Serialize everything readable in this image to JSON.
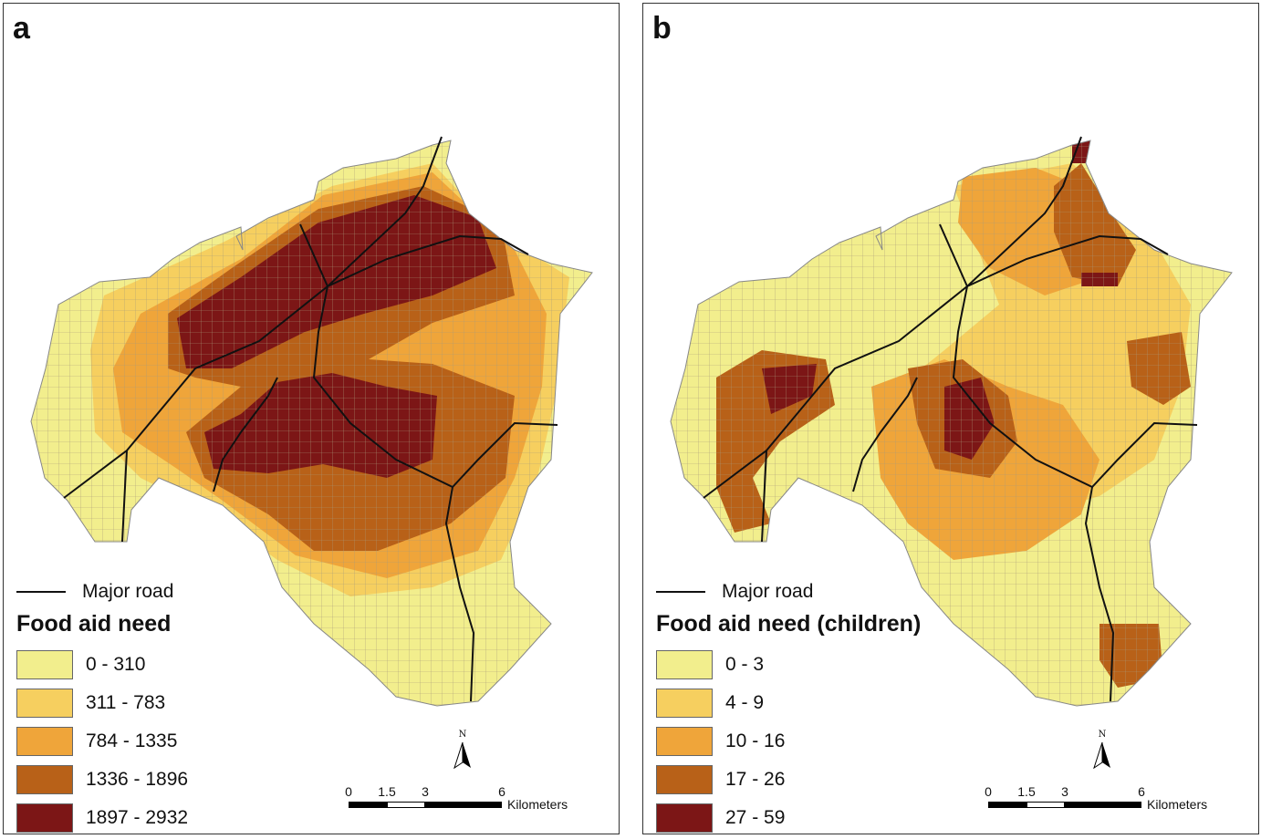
{
  "colors": {
    "class_1": "#f2ee8d",
    "class_2": "#f6cf5f",
    "class_3": "#efa53a",
    "class_4": "#b86118",
    "class_5": "#7c1616",
    "road": "#111111",
    "grid": "#a89a7a"
  },
  "panels": [
    {
      "letter": "a",
      "road_label": "Major road",
      "legend_title": "Food aid need",
      "classes": [
        "0 - 310",
        "311 - 783",
        "784 - 1335",
        "1336 - 1896",
        "1897 - 2932"
      ],
      "scale": {
        "ticks": [
          "0",
          "1.5",
          "3",
          "6"
        ],
        "unit": "Kilometers"
      },
      "north_label": "N"
    },
    {
      "letter": "b",
      "road_label": "Major road",
      "legend_title": "Food aid need (children)",
      "classes": [
        "0 - 3",
        "4 - 9",
        "10 - 16",
        "17 - 26",
        "27 - 59"
      ],
      "scale": {
        "ticks": [
          "0",
          "1.5",
          "3",
          "6"
        ],
        "unit": "Kilometers"
      },
      "north_label": "N"
    }
  ]
}
